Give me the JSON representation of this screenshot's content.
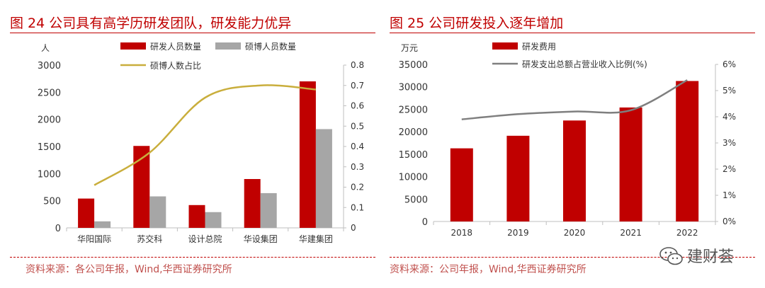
{
  "left_panel": {
    "title": "图 24 公司具有高学历研发团队，研发能力优异",
    "source": "资料来源：各公司年报，Wind,华西证券研究所"
  },
  "right_panel": {
    "title": "图 25 公司研发投入逐年增加",
    "source": "资料来源：公司年报，Wind,华西证券研究所"
  },
  "watermark": {
    "text": "建财荟",
    "icon": "wechat-icon"
  },
  "colors": {
    "accent": "#c00000",
    "bar_red": "#c00000",
    "bar_gray": "#a6a6a6",
    "line_gold": "#c9ae3c",
    "line_gray": "#7f7f7f"
  },
  "chart_data": [
    {
      "type": "bar",
      "categories": [
        "华阳国际",
        "苏交科",
        "设计总院",
        "华设集团",
        "华建集团"
      ],
      "series": [
        {
          "name": "研发人员数量",
          "kind": "bar",
          "axis": "left",
          "values": [
            540,
            1510,
            420,
            900,
            2700
          ]
        },
        {
          "name": "硕博人员数量",
          "kind": "bar",
          "axis": "left",
          "values": [
            120,
            580,
            290,
            640,
            1820
          ]
        },
        {
          "name": "硕博人数占比",
          "kind": "line",
          "axis": "right",
          "values": [
            0.21,
            0.37,
            0.64,
            0.7,
            0.68
          ]
        }
      ],
      "yunit": "人",
      "ylim": [
        0,
        3000
      ],
      "yticks": [
        "0",
        "500",
        "1000",
        "1500",
        "2000",
        "2500",
        "3000"
      ],
      "y2lim": [
        0,
        0.8
      ],
      "y2ticks": [
        "0",
        "0.1",
        "0.2",
        "0.3",
        "0.4",
        "0.5",
        "0.6",
        "0.7",
        "0.8"
      ],
      "grid": false,
      "legend": "top"
    },
    {
      "type": "bar",
      "categories": [
        "2018",
        "2019",
        "2020",
        "2021",
        "2022"
      ],
      "series": [
        {
          "name": "研发费用",
          "kind": "bar",
          "axis": "left",
          "values": [
            16300,
            19100,
            22500,
            25400,
            31300
          ]
        },
        {
          "name": "研发支出总额占营业收入比例(%)",
          "kind": "line",
          "axis": "right",
          "values": [
            3.9,
            4.1,
            4.2,
            4.25,
            5.4
          ]
        }
      ],
      "yunit": "万元",
      "ylim": [
        0,
        35000
      ],
      "yticks": [
        "0",
        "5000",
        "10000",
        "15000",
        "20000",
        "25000",
        "30000",
        "35000"
      ],
      "y2lim": [
        0,
        6
      ],
      "y2ticks": [
        "0%",
        "1%",
        "2%",
        "3%",
        "4%",
        "5%",
        "6%"
      ],
      "grid": false,
      "legend": "top"
    }
  ]
}
